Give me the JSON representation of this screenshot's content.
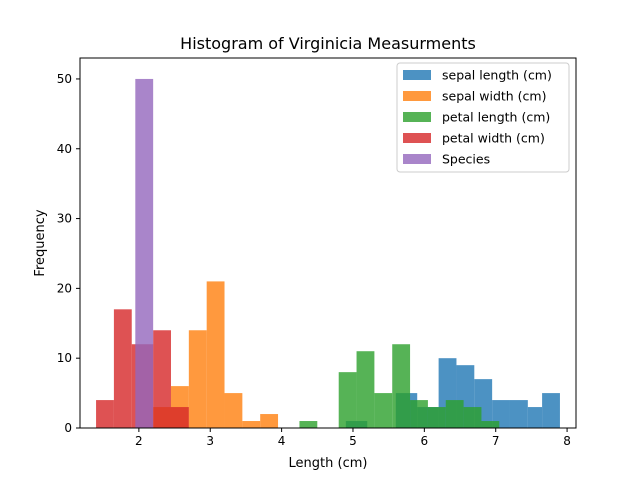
{
  "chart_data": {
    "type": "bar",
    "title": "Histogram of Virginicia Measurments",
    "xlabel": "Length (cm)",
    "ylabel": "Frequency",
    "xlim": [
      1.175,
      8.125
    ],
    "ylim": [
      0,
      53
    ],
    "x_ticks": [
      2,
      3,
      4,
      5,
      6,
      7,
      8
    ],
    "y_ticks": [
      0,
      10,
      20,
      30,
      40,
      50
    ],
    "legend_position": "top-right",
    "series": [
      {
        "name": "sepal length (cm)",
        "color": "#1f77b4",
        "bins": [
          [
            4.9,
            5.2,
            1
          ],
          [
            5.6,
            5.9,
            5
          ],
          [
            5.9,
            6.2,
            3
          ],
          [
            6.2,
            6.45,
            10
          ],
          [
            6.45,
            6.7,
            9
          ],
          [
            6.7,
            6.95,
            7
          ],
          [
            6.95,
            7.2,
            4
          ],
          [
            7.2,
            7.45,
            4
          ],
          [
            7.45,
            7.65,
            3
          ],
          [
            7.65,
            7.9,
            5
          ]
        ]
      },
      {
        "name": "sepal width (cm)",
        "color": "#ff7f0e",
        "bins": [
          [
            2.2,
            2.45,
            3
          ],
          [
            2.45,
            2.7,
            6
          ],
          [
            2.7,
            2.95,
            14
          ],
          [
            2.95,
            3.2,
            21
          ],
          [
            3.2,
            3.45,
            5
          ],
          [
            3.45,
            3.7,
            1
          ],
          [
            3.7,
            3.95,
            2
          ]
        ]
      },
      {
        "name": "petal length (cm)",
        "color": "#2ca02c",
        "bins": [
          [
            4.25,
            4.5,
            1
          ],
          [
            4.8,
            5.05,
            8
          ],
          [
            5.05,
            5.3,
            11
          ],
          [
            5.3,
            5.55,
            5
          ],
          [
            5.55,
            5.8,
            12
          ],
          [
            5.8,
            6.05,
            4
          ],
          [
            6.05,
            6.3,
            3
          ],
          [
            6.3,
            6.55,
            4
          ],
          [
            6.55,
            6.8,
            3
          ],
          [
            6.8,
            7.05,
            1
          ]
        ]
      },
      {
        "name": "petal width (cm)",
        "color": "#d62728",
        "bins": [
          [
            1.4,
            1.65,
            4
          ],
          [
            1.65,
            1.9,
            17
          ],
          [
            1.9,
            2.2,
            12
          ],
          [
            2.2,
            2.45,
            14
          ],
          [
            2.45,
            2.7,
            3
          ]
        ]
      },
      {
        "name": "Species",
        "color": "#9467bd",
        "bins": [
          [
            1.95,
            2.2,
            50
          ]
        ]
      }
    ]
  }
}
